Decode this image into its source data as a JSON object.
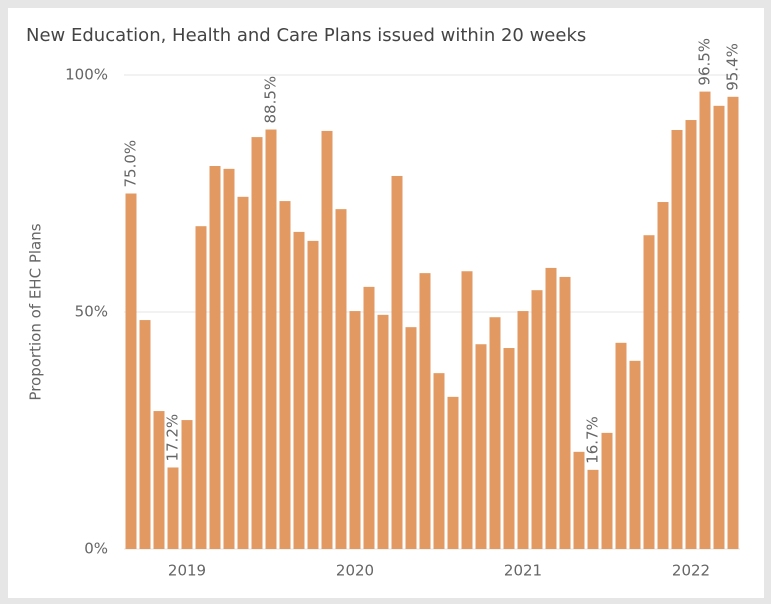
{
  "chart_data": {
    "type": "bar",
    "title": "New Education, Health and Care Plans issued within 20 weeks",
    "y_label": "Proportion of EHC Plans",
    "color": "#e39a62",
    "categories": [
      null,
      null,
      null,
      null,
      "2019",
      null,
      null,
      null,
      null,
      null,
      null,
      null,
      null,
      null,
      null,
      null,
      "2020",
      null,
      null,
      null,
      null,
      null,
      null,
      null,
      null,
      null,
      null,
      null,
      "2021",
      null,
      null,
      null,
      null,
      null,
      null,
      null,
      null,
      null,
      null,
      null,
      "2022",
      null,
      null,
      null
    ],
    "values": [
      75.0,
      48.3,
      29.1,
      17.2,
      27.2,
      68.1,
      80.8,
      80.2,
      74.3,
      86.9,
      88.5,
      73.4,
      66.9,
      65.0,
      88.2,
      71.7,
      50.2,
      55.3,
      49.4,
      78.7,
      46.8,
      58.2,
      37.1,
      32.1,
      58.6,
      43.2,
      48.9,
      42.4,
      50.2,
      54.6,
      59.3,
      57.4,
      20.5,
      16.7,
      24.5,
      43.5,
      39.7,
      66.2,
      73.2,
      88.4,
      90.5,
      96.5,
      93.5,
      95.4
    ],
    "value_labels": [
      "75.0%",
      null,
      null,
      "17.2%",
      null,
      null,
      null,
      null,
      null,
      null,
      "88.5%",
      null,
      null,
      null,
      null,
      null,
      null,
      null,
      null,
      null,
      null,
      null,
      null,
      null,
      null,
      null,
      null,
      null,
      null,
      null,
      null,
      null,
      null,
      "16.7%",
      null,
      null,
      null,
      null,
      null,
      null,
      null,
      "96.5%",
      null,
      "95.4%"
    ],
    "ylim": [
      0,
      100
    ],
    "yticks": [
      {
        "value": 0,
        "label": "0%"
      },
      {
        "value": 50,
        "label": "50%"
      },
      {
        "value": 100,
        "label": "100%"
      }
    ],
    "grid": true
  }
}
